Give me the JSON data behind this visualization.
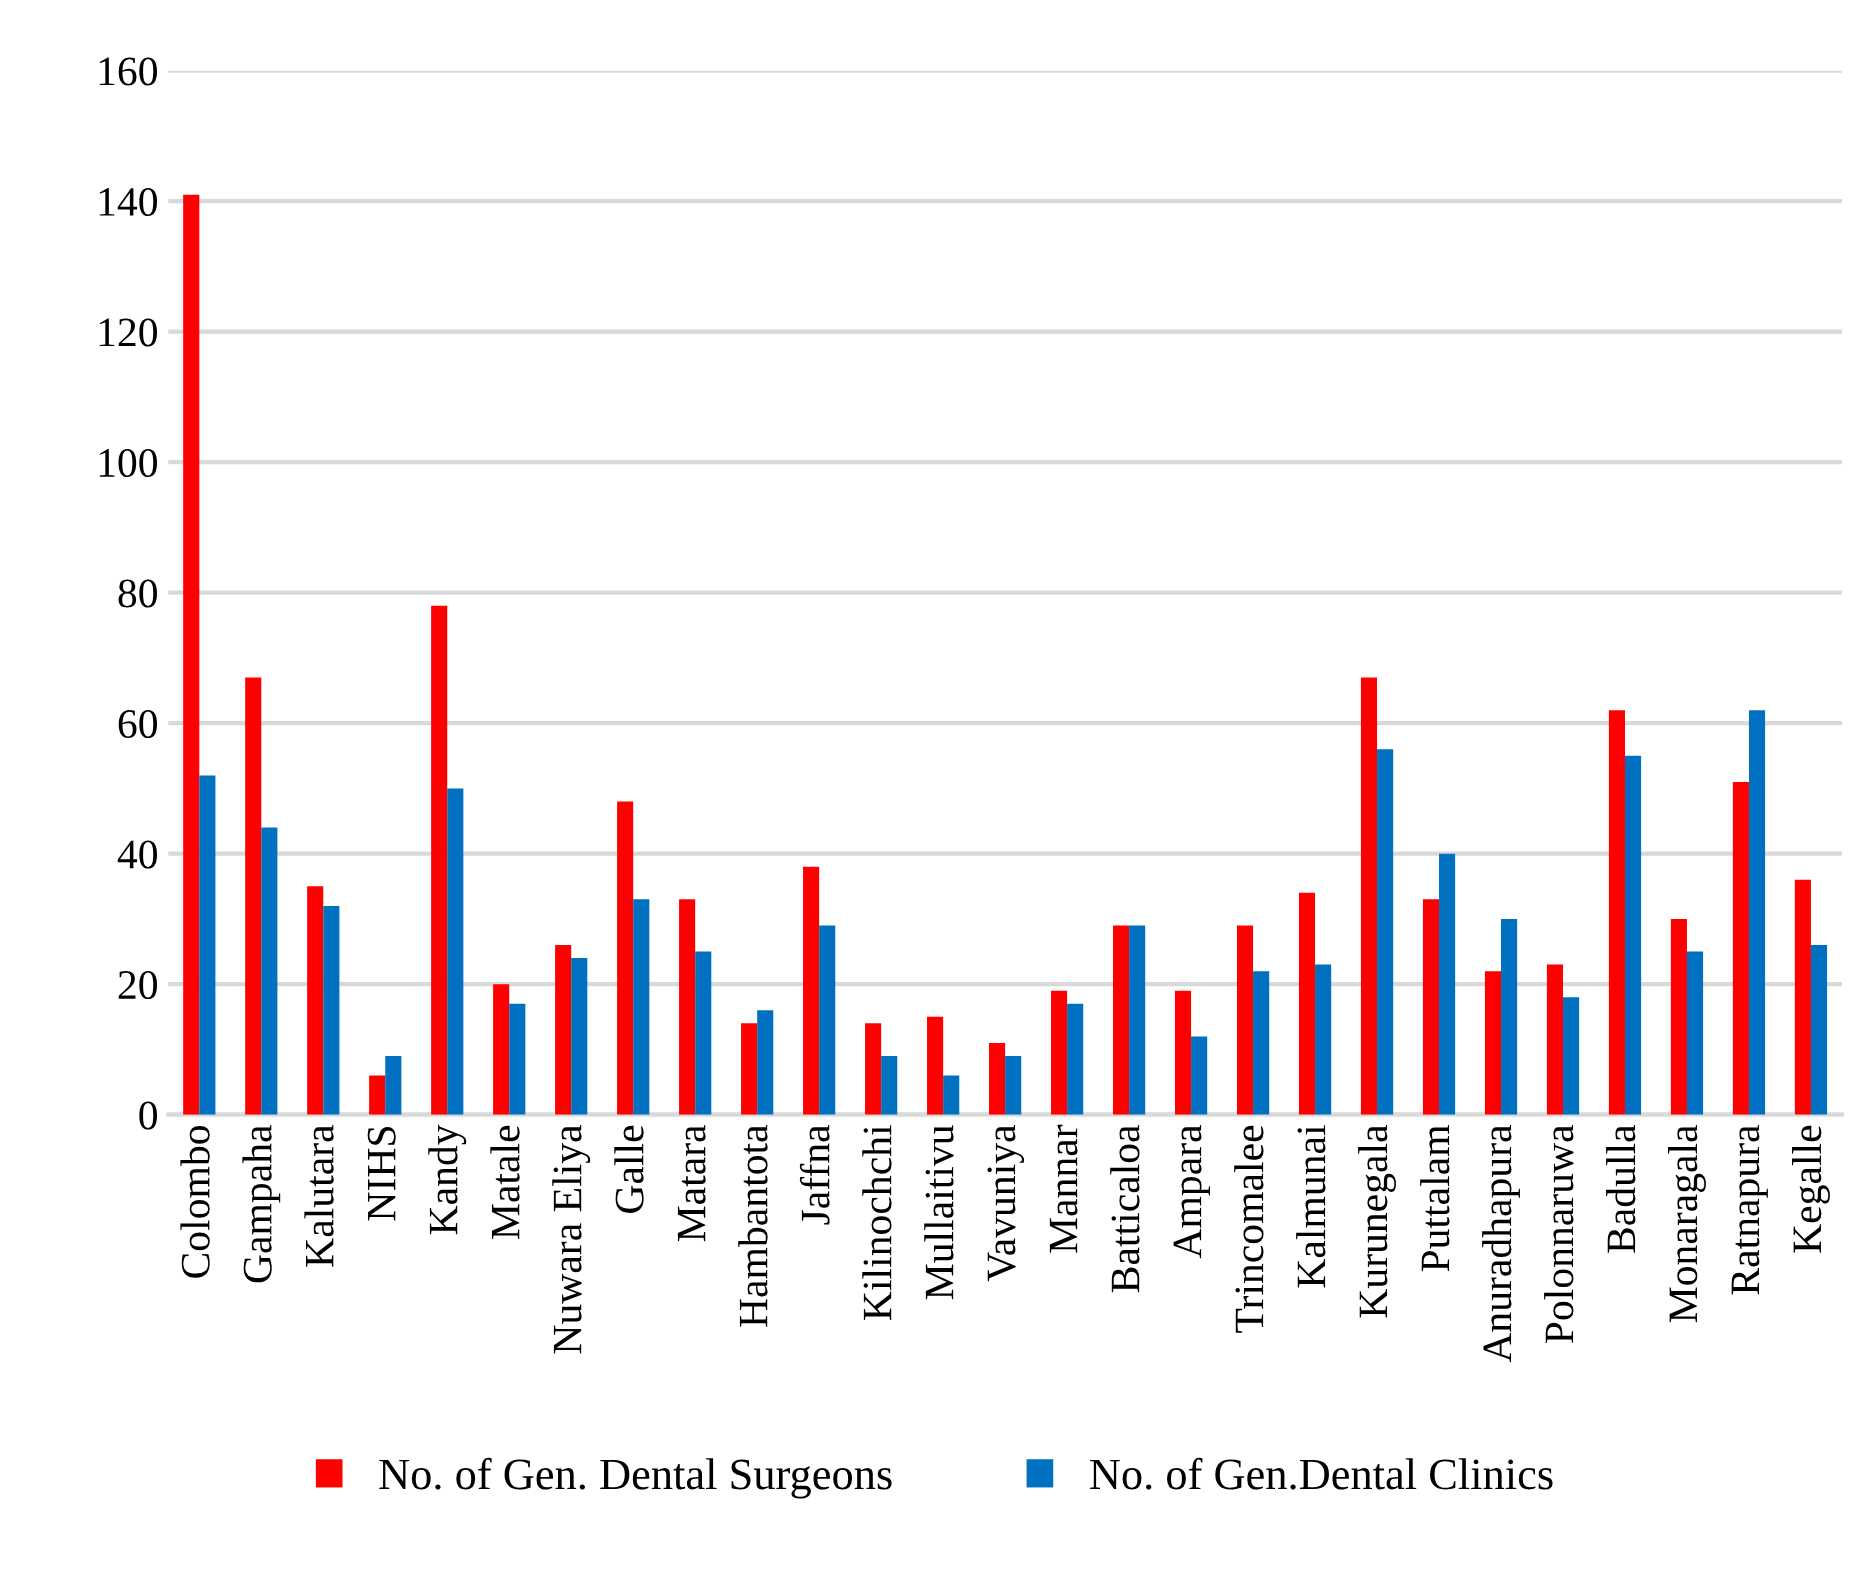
{
  "chart_data": {
    "type": "bar",
    "categories": [
      "Colombo",
      "Gampaha",
      "Kalutara",
      "NIHS",
      "Kandy",
      "Matale",
      "Nuwara Eliya",
      "Galle",
      "Matara",
      "Hambantota",
      "Jaffna",
      "Kilinochchi",
      "Mullaitivu",
      "Vavuniya",
      "Mannar",
      "Batticaloa",
      "Ampara",
      "Trincomalee",
      "Kalmunai",
      "Kurunegala",
      "Puttalam",
      "Anuradhapura",
      "Polonnaruwa",
      "Badulla",
      "Monaragala",
      "Ratnapura",
      "Kegalle"
    ],
    "series": [
      {
        "name": "No. of Gen. Dental Surgeons",
        "color": "#ff0000",
        "values": [
          141,
          67,
          35,
          6,
          78,
          20,
          26,
          48,
          33,
          14,
          38,
          14,
          15,
          11,
          19,
          29,
          19,
          29,
          34,
          67,
          33,
          22,
          23,
          62,
          30,
          51,
          36
        ]
      },
      {
        "name": "No. of Gen.Dental Clinics",
        "color": "#0070c0",
        "values": [
          52,
          44,
          32,
          9,
          50,
          17,
          24,
          33,
          25,
          16,
          29,
          9,
          6,
          9,
          17,
          29,
          12,
          22,
          23,
          56,
          40,
          30,
          18,
          55,
          25,
          62,
          26
        ]
      }
    ],
    "ylim": [
      0,
      160
    ],
    "yticks": [
      0,
      20,
      40,
      60,
      80,
      100,
      120,
      140,
      160
    ],
    "grid": "y",
    "legend": "bottom"
  }
}
